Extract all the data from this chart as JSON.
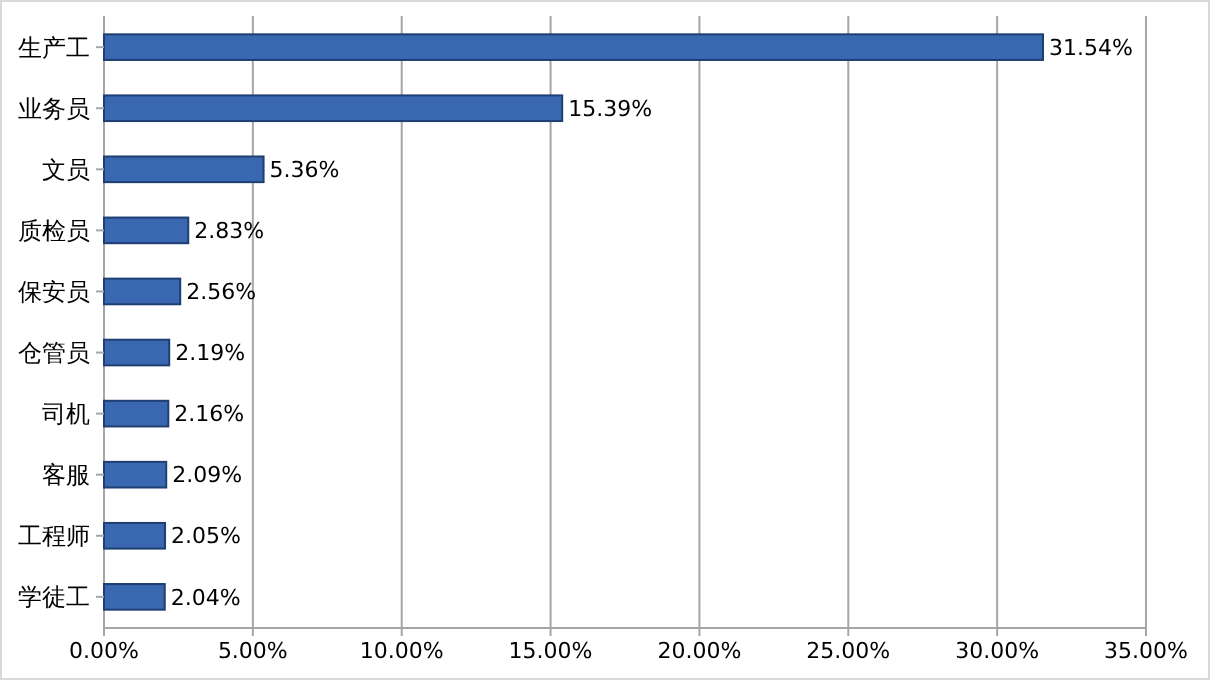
{
  "chart_data": {
    "type": "bar",
    "orientation": "horizontal",
    "categories": [
      "生产工",
      "业务员",
      "文员",
      "质检员",
      "保安员",
      "仓管员",
      "司机",
      "客服",
      "工程师",
      "学徒工"
    ],
    "values": [
      31.54,
      15.39,
      5.36,
      2.83,
      2.56,
      2.19,
      2.16,
      2.09,
      2.05,
      2.04
    ],
    "value_labels": [
      "31.54%",
      "15.39%",
      "5.36%",
      "2.83%",
      "2.56%",
      "2.19%",
      "2.16%",
      "2.09%",
      "2.05%",
      "2.04%"
    ],
    "color": "#3a68b0",
    "xlim": [
      0,
      35
    ],
    "xticks": [
      {
        "value": 0,
        "label": "0.00%"
      },
      {
        "value": 5,
        "label": "5.00%"
      },
      {
        "value": 10,
        "label": "10.00%"
      },
      {
        "value": 15,
        "label": "15.00%"
      },
      {
        "value": 20,
        "label": "20.00%"
      },
      {
        "value": 25,
        "label": "25.00%"
      },
      {
        "value": 30,
        "label": "30.00%"
      },
      {
        "value": 35,
        "label": "35.00%"
      }
    ],
    "grid": "x"
  }
}
